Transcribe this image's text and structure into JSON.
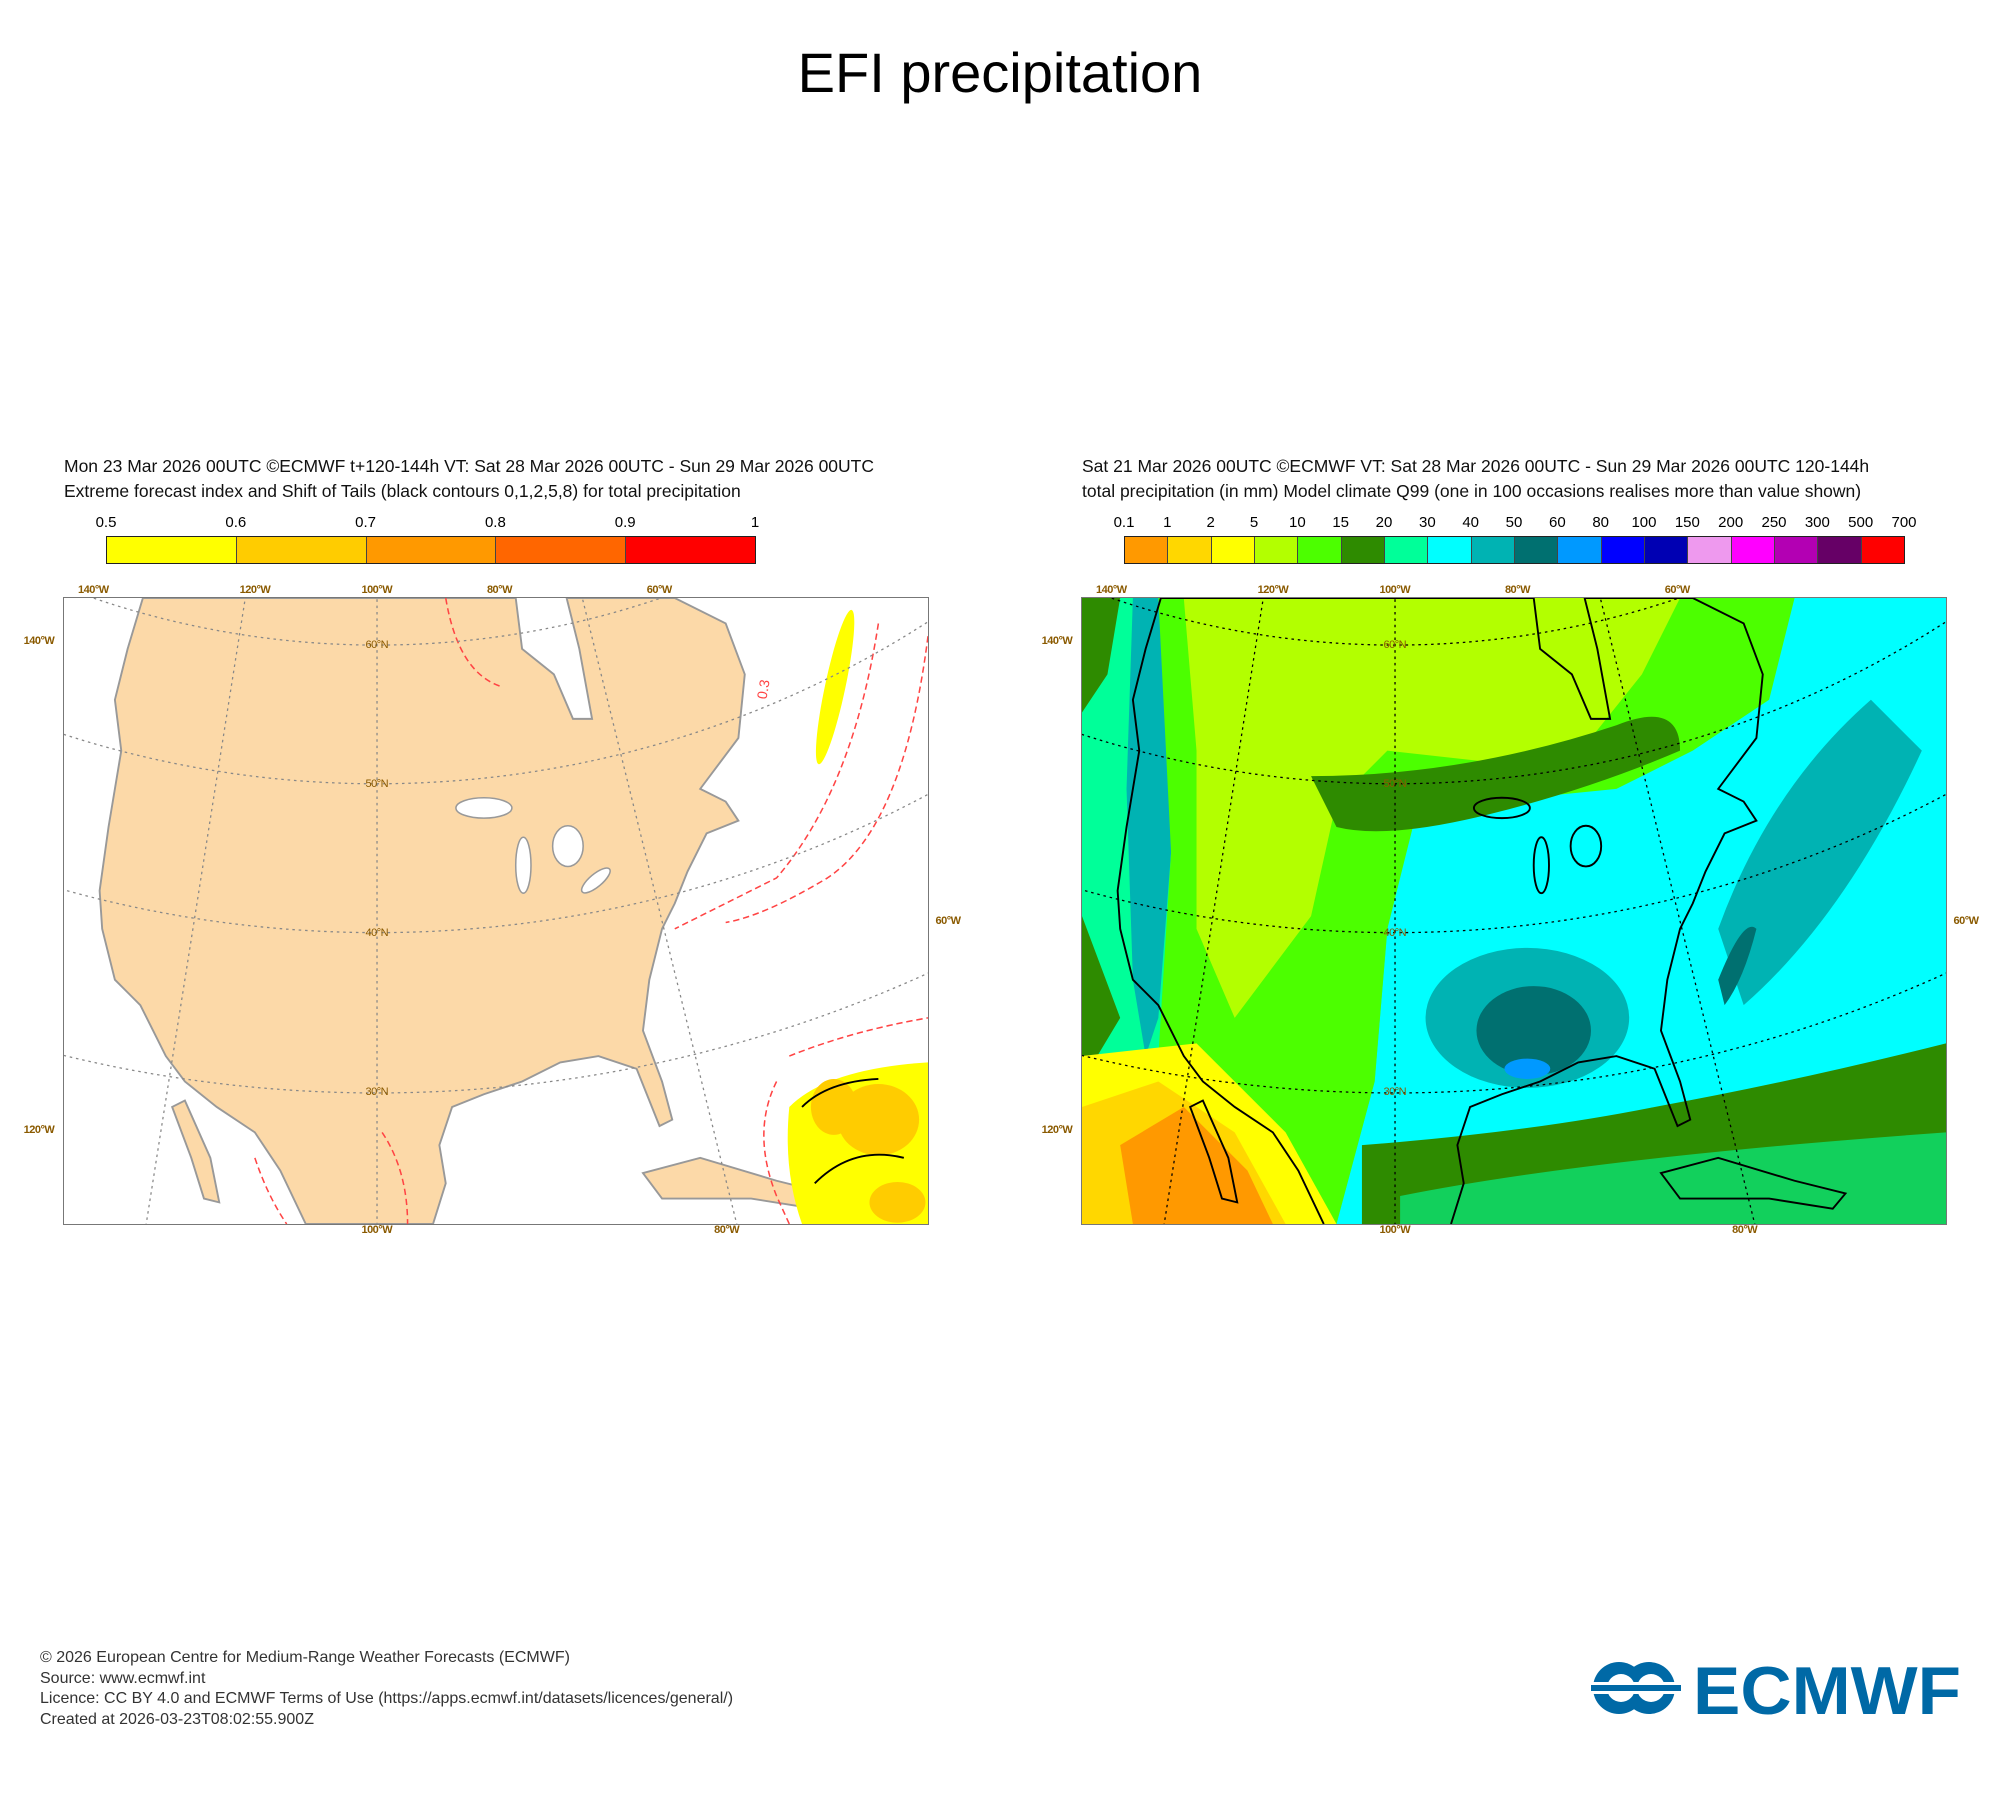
{
  "title": "EFI precipitation",
  "left_panel": {
    "header_line1": "Mon 23 Mar 2026 00UTC ©ECMWF t+120-144h  VT: Sat 28 Mar 2026 00UTC - Sun 29 Mar 2026 00UTC",
    "header_line2": "Extreme forecast index and Shift of Tails (black contours 0,1,2,5,8) for total precipitation",
    "colorbar": {
      "ticks": [
        "0.5",
        "0.6",
        "0.7",
        "0.8",
        "0.9",
        "1"
      ],
      "colors": [
        "#ffff00",
        "#ffcc00",
        "#ff9900",
        "#ff6600",
        "#ff0000"
      ]
    },
    "contour_label": "0.3",
    "land_color": "#fcd9a8"
  },
  "right_panel": {
    "header_line1": "Sat 21 Mar 2026 00UTC ©ECMWF VT: Sat 28 Mar 2026 00UTC - Sun 29 Mar 2026 00UTC   120-144h",
    "header_line2": "total precipitation (in mm)  Model climate Q99 (one in 100 occasions realises more than value shown)",
    "colorbar": {
      "ticks": [
        "0.1",
        "1",
        "2",
        "5",
        "10",
        "15",
        "20",
        "30",
        "40",
        "50",
        "60",
        "80",
        "100",
        "150",
        "200",
        "250",
        "300",
        "500",
        "700"
      ],
      "colors": [
        "#ff9900",
        "#ffd700",
        "#ffff00",
        "#b3ff00",
        "#4cff00",
        "#2e8b00",
        "#00ff99",
        "#00ffff",
        "#00b3b3",
        "#007070",
        "#0099ff",
        "#0000ff",
        "#0000b3",
        "#ee99ee",
        "#ff00ff",
        "#b300b3",
        "#660066",
        "#ff0000"
      ]
    }
  },
  "axis_labels": {
    "top": [
      "140°W",
      "120°W",
      "100°W",
      "80°W",
      "60°W"
    ],
    "left": [
      "140°W",
      "120°W"
    ],
    "right": [
      "60°W"
    ],
    "bottom": [
      "100°W",
      "80°W"
    ],
    "lat": [
      "60°N",
      "50°N",
      "40°N",
      "30°N"
    ]
  },
  "footer": {
    "line1": "© 2026 European Centre for Medium-Range Weather Forecasts (ECMWF)",
    "line2": "Source: www.ecmwf.int",
    "line3": "Licence: CC BY 4.0 and ECMWF Terms of Use (https://apps.ecmwf.int/datasets/licences/general/)",
    "line4": "Created at 2026-03-23T08:02:55.900Z"
  },
  "logo": {
    "text": "ECMWF",
    "color": "#0069a6"
  }
}
